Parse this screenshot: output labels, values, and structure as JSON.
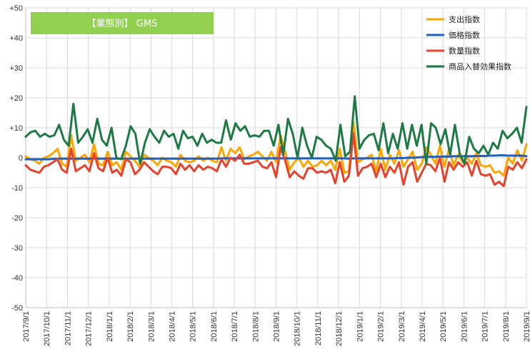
{
  "chart_data": {
    "type": "line",
    "title": "【業態別】 GMS",
    "title_box_color": "#92d050",
    "ylim": [
      -50,
      50
    ],
    "y_ticks": [
      50,
      40,
      30,
      20,
      10,
      0,
      -10,
      -20,
      -30,
      -40,
      -50
    ],
    "y_tick_labels": [
      "+50",
      "+40",
      "+30",
      "+20",
      "+10",
      "0",
      "-10",
      "-20",
      "-30",
      "-40",
      "-50"
    ],
    "x_tick_labels": [
      "2017/9/1",
      "2017/10/1",
      "2017/11/1",
      "2017/12/1",
      "2018/1/1",
      "2018/2/1",
      "2018/3/1",
      "2018/4/1",
      "2018/5/1",
      "2018/6/1",
      "2018/7/1",
      "2018/8/1",
      "2018/9/1",
      "2018/10/1",
      "2018/11/1",
      "2018/12/1",
      "2019/1/1",
      "2019/2/1",
      "2019/3/1",
      "2019/4/1",
      "2019/5/1",
      "2019/6/1",
      "2019/7/1",
      "2019/8/1",
      "2019/9/1"
    ],
    "grid": true,
    "legend_position": "top-right",
    "series": [
      {
        "name": "支出指数",
        "color": "#ffa500",
        "values": [
          0.5,
          -0.5,
          -1,
          -2,
          0,
          0.5,
          1.5,
          3,
          -2,
          -3,
          7.5,
          -1,
          0,
          1,
          -1.5,
          4.5,
          -2,
          -2.5,
          2,
          -2.5,
          -1.5,
          -4,
          2,
          0.5,
          -1,
          -3,
          1,
          0,
          -1,
          -2.5,
          0,
          -1,
          -1.5,
          -3,
          1,
          -1,
          -1.5,
          -1,
          0.5,
          -1,
          0,
          -1,
          -1.5,
          3.5,
          -1,
          3,
          1.5,
          3.5,
          -0.5,
          0.5,
          1,
          2,
          0.5,
          -1,
          2,
          -1.5,
          7.5,
          2,
          -4,
          -1.5,
          0,
          -3,
          -1,
          -3,
          -2.5,
          -1,
          -2.5,
          -1,
          -4,
          3,
          -5,
          -4.5,
          12,
          -1.5,
          -0.5,
          0,
          1,
          -4.5,
          3,
          -4,
          1,
          -2,
          2.5,
          -3,
          -0.5,
          2,
          -4,
          -2,
          3.5,
          1,
          -2,
          4,
          -3,
          3,
          -2.5,
          1,
          -1.5,
          0,
          -2,
          1.5,
          -2.5,
          -3,
          -2.5,
          -5,
          -4.5,
          -6,
          0,
          -2,
          2.5,
          -1,
          4.5
        ]
      },
      {
        "name": "価格指数",
        "color": "#1f5fbf",
        "values": [
          -0.5,
          -0.5,
          -0.5,
          -0.5,
          -0.5,
          -0.5,
          -0.4,
          -0.3,
          -0.3,
          -0.3,
          -0.3,
          -0.3,
          -0.3,
          -0.3,
          -0.3,
          -0.2,
          -0.3,
          -0.3,
          -0.3,
          -0.3,
          -0.3,
          -0.3,
          -0.3,
          -0.3,
          -0.3,
          -0.3,
          -0.3,
          -0.3,
          -0.3,
          -0.3,
          -0.3,
          -0.3,
          -0.3,
          -0.3,
          -0.3,
          -0.3,
          -0.3,
          -0.3,
          -0.3,
          -0.3,
          -0.3,
          -0.3,
          -0.3,
          -0.2,
          -0.2,
          -0.2,
          -0.2,
          -0.2,
          -0.2,
          -0.2,
          -0.2,
          -0.2,
          -0.2,
          -0.2,
          -0.2,
          -0.2,
          -0.2,
          -0.2,
          -0.2,
          -0.2,
          -0.2,
          -0.2,
          -0.2,
          -0.2,
          -0.2,
          -0.2,
          -0.2,
          -0.2,
          -0.2,
          -0.2,
          -0.2,
          -0.3,
          -0.2,
          -0.2,
          -0.2,
          -0.2,
          -0.2,
          -0.2,
          -0.2,
          -0.2,
          -0.2,
          -0.2,
          -0.1,
          -0.1,
          0,
          0,
          0.1,
          0.2,
          0.3,
          0.3,
          0.3,
          0.4,
          0.4,
          0.4,
          0.5,
          0.5,
          0.5,
          0.5,
          0.5,
          0.6,
          0.6,
          0.6,
          0.7,
          0.7,
          0.8,
          0.8,
          0.7,
          0.7,
          0.7,
          0.7,
          0.5
        ]
      },
      {
        "name": "数量指数",
        "color": "#e8412c",
        "values": [
          -2.5,
          -4,
          -4.5,
          -5,
          -3,
          -2.5,
          -1.5,
          -0.5,
          -4,
          -5,
          3,
          -4.5,
          -3.5,
          -2.5,
          -4.5,
          1.5,
          -3.5,
          -4.5,
          0,
          -5,
          -4,
          -6,
          -0.5,
          -1.5,
          -5.5,
          -4,
          -1.5,
          -3,
          -4.5,
          -5.5,
          -3,
          -3,
          -3.5,
          -5.5,
          -2,
          -4,
          -2.5,
          -4.5,
          -2.5,
          -4,
          -3,
          -3.5,
          -4.5,
          -0.5,
          -3,
          0,
          -1,
          1,
          -2,
          -2,
          -1.5,
          -1,
          -3,
          -3.5,
          -1.5,
          -6.5,
          3.5,
          -1,
          -6.5,
          -4.5,
          -6,
          -7,
          -3.5,
          -3.5,
          -5,
          -4.5,
          -5,
          -4,
          -8.5,
          -1.5,
          -8,
          -6,
          8,
          -6,
          -3.5,
          -3,
          -2,
          -6.5,
          -2,
          -6.5,
          -3,
          -5,
          -1.5,
          -9,
          -3,
          -1.5,
          -8,
          -5,
          -2,
          -2.5,
          -4.5,
          0,
          -8,
          -1.5,
          -4,
          -1.5,
          -3,
          -1.5,
          -6,
          -1,
          -5.5,
          -6,
          -5.5,
          -9,
          -8,
          -9.5,
          -3,
          -4,
          -1.5,
          -3.5,
          -0.5
        ]
      },
      {
        "name": "商品入替効果指数",
        "color": "#1e7a45",
        "values": [
          7,
          8.5,
          9,
          7,
          8,
          7,
          7.5,
          11,
          6,
          4,
          18,
          5,
          7,
          9.5,
          5,
          13,
          6,
          4,
          10,
          0,
          -0.5,
          4,
          10.5,
          8,
          -2,
          5,
          9.5,
          7,
          5,
          9,
          7,
          8,
          3,
          9,
          6.5,
          7,
          4,
          8,
          5,
          6,
          5,
          5,
          12.5,
          6,
          11.5,
          9,
          10.5,
          7,
          7.5,
          7,
          9,
          9,
          4,
          11,
          1,
          13,
          8,
          0,
          10,
          4,
          0,
          7,
          6,
          4,
          3,
          -1,
          11,
          0.5,
          2,
          20.5,
          3,
          6,
          7.5,
          8,
          2.5,
          11.5,
          1.5,
          8,
          3,
          11.5,
          3,
          11,
          4,
          11,
          -2,
          11.5,
          10,
          4.5,
          9.5,
          1,
          11,
          1.5,
          -2,
          7,
          3,
          1.5,
          4,
          1,
          5,
          3,
          9,
          6.5,
          8,
          10,
          5,
          17
        ]
      }
    ]
  }
}
